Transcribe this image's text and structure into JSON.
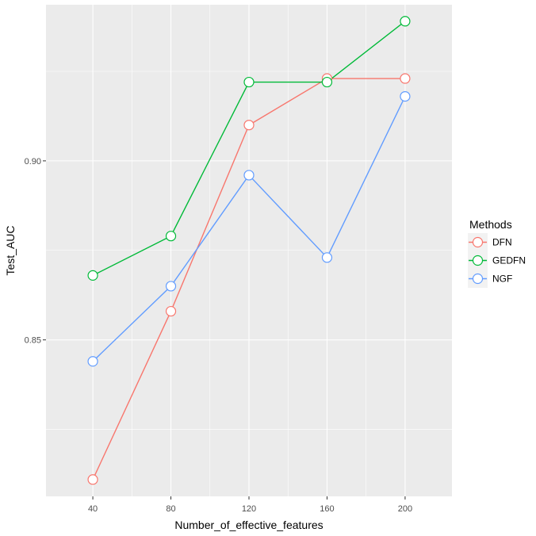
{
  "chart_data": {
    "type": "line",
    "xlabel": "Number_of_effective_features",
    "ylabel": "Test_AUC",
    "x": [
      40,
      80,
      120,
      160,
      200
    ],
    "x_tick_labels": [
      "40",
      "80",
      "120",
      "160",
      "200"
    ],
    "xlim": [
      16,
      224
    ],
    "y_ticks": [
      0.85,
      0.9
    ],
    "y_tick_labels": [
      "0.85",
      "0.90"
    ],
    "ylim": [
      0.8063,
      0.9436
    ],
    "grid": true,
    "legend": {
      "title": "Methods",
      "position": "right"
    },
    "series": [
      {
        "name": "DFN",
        "color": "#F8766D",
        "values": [
          0.811,
          0.858,
          0.91,
          0.923,
          0.923
        ]
      },
      {
        "name": "GEDFN",
        "color": "#00BA38",
        "values": [
          0.868,
          0.879,
          0.922,
          0.922,
          0.939
        ]
      },
      {
        "name": "NGF",
        "color": "#619CFF",
        "values": [
          0.844,
          0.865,
          0.896,
          0.873,
          0.918
        ]
      }
    ]
  }
}
